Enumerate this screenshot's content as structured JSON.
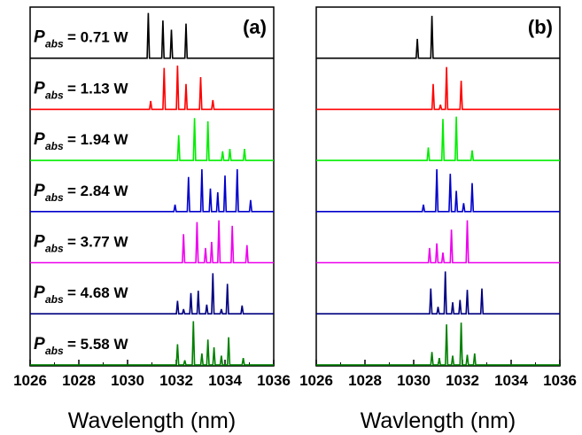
{
  "chart_data": [
    {
      "type": "line",
      "panel_label": "(a)",
      "xlabel": "Wavelength (nm)",
      "ylabel": "",
      "xlim": [
        1026,
        1036
      ],
      "xticks": [
        1026,
        1028,
        1030,
        1032,
        1034,
        1036
      ],
      "series": [
        {
          "label": {
            "symbol": "P",
            "sub": "abs",
            "value": "= 0.71 W"
          },
          "color": "#000000",
          "peaks": [
            [
              1030.85,
              0.98
            ],
            [
              1031.45,
              0.82
            ],
            [
              1031.8,
              0.62
            ],
            [
              1032.4,
              0.75
            ]
          ]
        },
        {
          "label": {
            "symbol": "P",
            "sub": "abs",
            "value": "= 1.13 W"
          },
          "color": "#ff0000",
          "peaks": [
            [
              1030.95,
              0.18
            ],
            [
              1031.5,
              0.9
            ],
            [
              1032.05,
              0.95
            ],
            [
              1032.4,
              0.55
            ],
            [
              1033.0,
              0.7
            ],
            [
              1033.5,
              0.2
            ]
          ]
        },
        {
          "label": {
            "symbol": "P",
            "sub": "abs",
            "value": "= 1.94 W"
          },
          "color": "#00ee00",
          "peaks": [
            [
              1032.1,
              0.55
            ],
            [
              1032.75,
              0.92
            ],
            [
              1033.3,
              0.85
            ],
            [
              1033.9,
              0.2
            ],
            [
              1034.2,
              0.25
            ],
            [
              1034.8,
              0.25
            ]
          ]
        },
        {
          "label": {
            "symbol": "P",
            "sub": "abs",
            "value": "= 2.84 W"
          },
          "color": "#0000cc",
          "peaks": [
            [
              1031.95,
              0.15
            ],
            [
              1032.5,
              0.75
            ],
            [
              1033.05,
              0.92
            ],
            [
              1033.4,
              0.5
            ],
            [
              1033.7,
              0.42
            ],
            [
              1034.0,
              0.78
            ],
            [
              1034.5,
              0.92
            ],
            [
              1035.05,
              0.25
            ]
          ]
        },
        {
          "label": {
            "symbol": "P",
            "sub": "abs",
            "value": "= 3.77 W"
          },
          "color": "#ee00ee",
          "peaks": [
            [
              1032.3,
              0.62
            ],
            [
              1032.85,
              0.88
            ],
            [
              1033.2,
              0.32
            ],
            [
              1033.45,
              0.45
            ],
            [
              1033.75,
              0.92
            ],
            [
              1034.3,
              0.8
            ],
            [
              1034.9,
              0.38
            ]
          ]
        },
        {
          "label": {
            "symbol": "P",
            "sub": "abs",
            "value": "= 4.68 W"
          },
          "color": "#000080",
          "peaks": [
            [
              1032.05,
              0.28
            ],
            [
              1032.3,
              0.1
            ],
            [
              1032.6,
              0.45
            ],
            [
              1032.9,
              0.5
            ],
            [
              1033.25,
              0.2
            ],
            [
              1033.5,
              0.88
            ],
            [
              1033.85,
              0.1
            ],
            [
              1034.1,
              0.65
            ],
            [
              1034.7,
              0.18
            ]
          ]
        },
        {
          "label": {
            "symbol": "P",
            "sub": "abs",
            "value": "= 5.58 W"
          },
          "color": "#008000",
          "peaks": [
            [
              1032.05,
              0.45
            ],
            [
              1032.35,
              0.1
            ],
            [
              1032.7,
              0.95
            ],
            [
              1033.05,
              0.25
            ],
            [
              1033.3,
              0.55
            ],
            [
              1033.55,
              0.38
            ],
            [
              1033.85,
              0.2
            ],
            [
              1034.15,
              0.6
            ],
            [
              1034.75,
              0.15
            ]
          ]
        }
      ]
    },
    {
      "type": "line",
      "panel_label": "(b)",
      "xlabel": "Wavlength (nm)",
      "ylabel": "",
      "xlim": [
        1026,
        1036
      ],
      "xticks": [
        1026,
        1028,
        1030,
        1032,
        1034,
        1036
      ],
      "series": [
        {
          "color": "#000000",
          "peaks": [
            [
              1030.15,
              0.42
            ],
            [
              1030.75,
              0.92
            ]
          ]
        },
        {
          "color": "#ff0000",
          "peaks": [
            [
              1030.8,
              0.55
            ],
            [
              1031.1,
              0.1
            ],
            [
              1031.35,
              0.92
            ],
            [
              1031.95,
              0.62
            ]
          ]
        },
        {
          "color": "#00ee00",
          "peaks": [
            [
              1030.6,
              0.28
            ],
            [
              1031.2,
              0.9
            ],
            [
              1031.75,
              0.95
            ],
            [
              1032.4,
              0.22
            ]
          ]
        },
        {
          "color": "#0000cc",
          "peaks": [
            [
              1030.4,
              0.15
            ],
            [
              1030.95,
              0.92
            ],
            [
              1031.5,
              0.82
            ],
            [
              1031.75,
              0.45
            ],
            [
              1032.05,
              0.18
            ],
            [
              1032.4,
              0.62
            ]
          ]
        },
        {
          "color": "#ee00ee",
          "peaks": [
            [
              1030.65,
              0.32
            ],
            [
              1030.95,
              0.42
            ],
            [
              1031.2,
              0.22
            ],
            [
              1031.55,
              0.72
            ],
            [
              1032.2,
              0.92
            ]
          ]
        },
        {
          "color": "#000080",
          "peaks": [
            [
              1030.7,
              0.55
            ],
            [
              1031.0,
              0.15
            ],
            [
              1031.3,
              0.92
            ],
            [
              1031.6,
              0.25
            ],
            [
              1031.9,
              0.3
            ],
            [
              1032.2,
              0.52
            ],
            [
              1032.8,
              0.55
            ]
          ]
        },
        {
          "color": "#008000",
          "peaks": [
            [
              1030.75,
              0.28
            ],
            [
              1031.05,
              0.15
            ],
            [
              1031.35,
              0.88
            ],
            [
              1031.6,
              0.2
            ],
            [
              1031.95,
              0.92
            ],
            [
              1032.2,
              0.22
            ],
            [
              1032.5,
              0.25
            ]
          ]
        }
      ]
    }
  ]
}
